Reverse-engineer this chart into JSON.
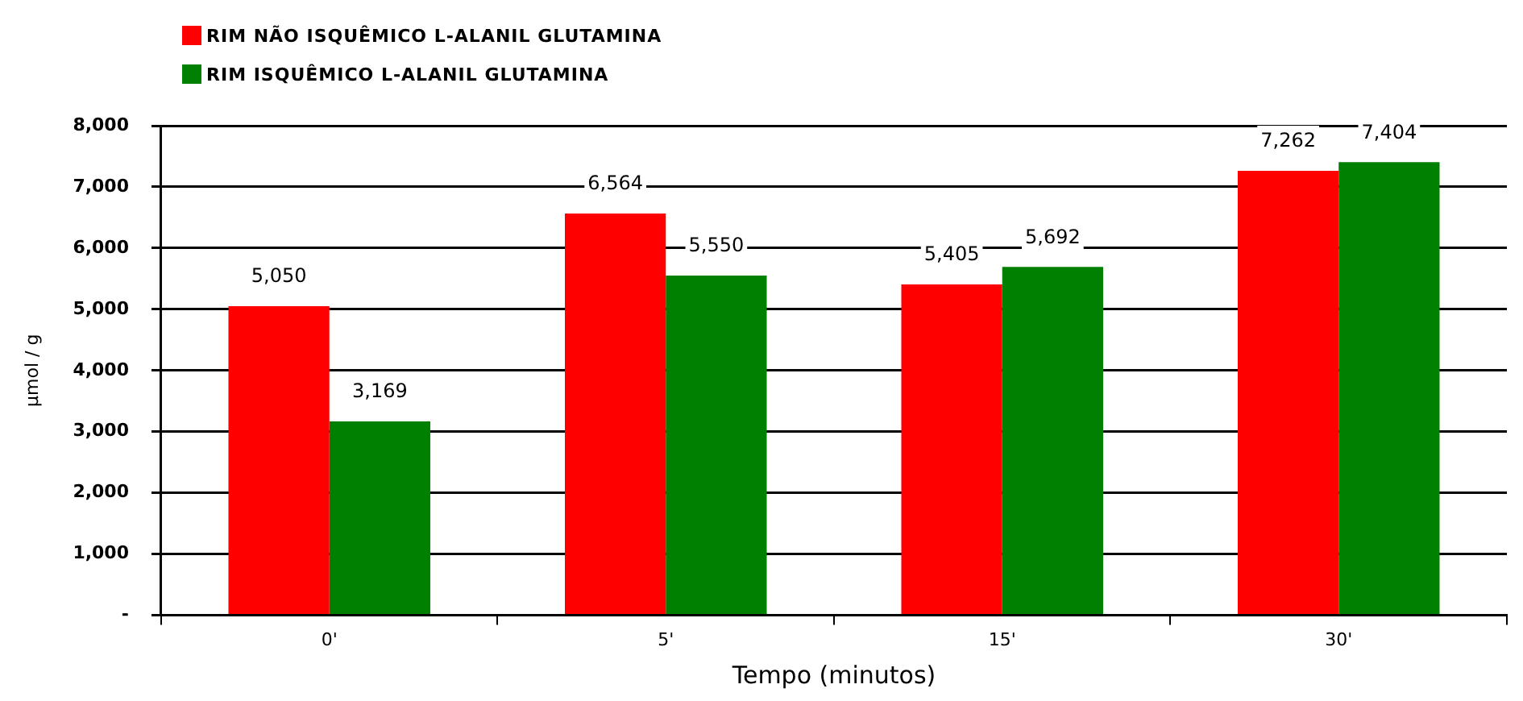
{
  "chart_data": {
    "type": "bar",
    "xlabel": "Tempo (minutos)",
    "ylabel": "µmol / g",
    "categories": [
      "0'",
      "5'",
      "15'",
      "30'"
    ],
    "series": [
      {
        "name": "RIM NÃO ISQUÊMICO L-ALANIL GLUTAMINA",
        "color": "#ff0000",
        "values": [
          5050,
          6564,
          5405,
          7262
        ],
        "value_labels": [
          "5,050",
          "6,564",
          "5,405",
          "7,262"
        ]
      },
      {
        "name": "RIM ISQUÊMICO L-ALANIL GLUTAMINA",
        "color": "#008000",
        "values": [
          3169,
          5550,
          5692,
          7404
        ],
        "value_labels": [
          "3,169",
          "5,550",
          "5,692",
          "7,404"
        ]
      }
    ],
    "ylim": [
      0,
      8000
    ],
    "yticks": [
      {
        "value": 0,
        "label": "-"
      },
      {
        "value": 1000,
        "label": "1,000"
      },
      {
        "value": 2000,
        "label": "2,000"
      },
      {
        "value": 3000,
        "label": "3,000"
      },
      {
        "value": 4000,
        "label": "4,000"
      },
      {
        "value": 5000,
        "label": "5,000"
      },
      {
        "value": 6000,
        "label": "6,000"
      },
      {
        "value": 7000,
        "label": "7,000"
      },
      {
        "value": 8000,
        "label": "8,000"
      }
    ],
    "grid": "y",
    "legend": "top left"
  }
}
